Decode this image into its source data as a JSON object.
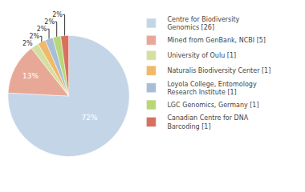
{
  "chart_data": {
    "type": "pie",
    "categories": [
      "Centre for Biodiversity\nGenomics [26]",
      "Mined from GenBank, NCBI [5]",
      "University of Oulu [1]",
      "Naturalis Biodiversity Center [1]",
      "Loyola College, Entomology\nResearch Institute [1]",
      "LGC Genomics, Germany [1]",
      "Canadian Centre for DNA\nBarcoding [1]"
    ],
    "values": [
      72,
      13,
      2,
      2,
      2,
      2,
      2
    ],
    "value_labels": [
      "72%",
      "13%",
      "2%",
      "2%",
      "2%",
      "2%",
      "2%"
    ],
    "colors": [
      "#c5d5e8",
      "#e8a898",
      "#d4e0a0",
      "#f0b868",
      "#a8bdd8",
      "#b8d878",
      "#d87060"
    ],
    "data_labels": true,
    "legend": "right"
  }
}
